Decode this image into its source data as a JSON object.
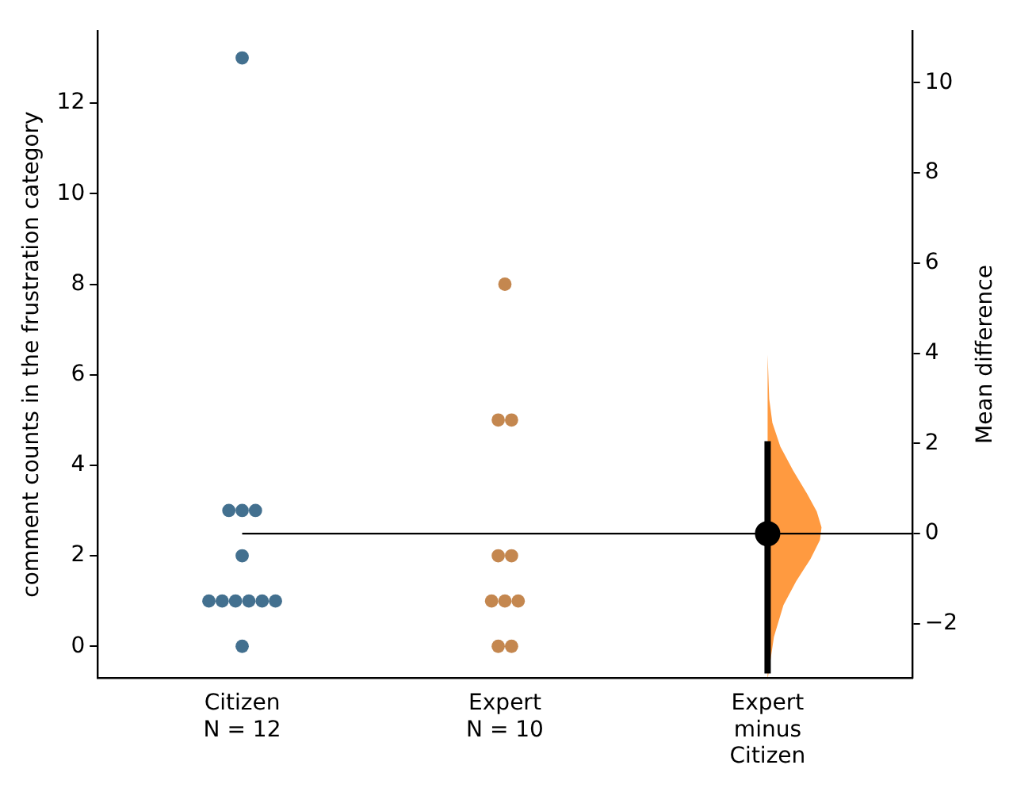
{
  "chart_data": {
    "type": "scatter",
    "categories": [
      "Citizen\nN = 12",
      "Expert\nN = 10",
      "Expert\nminus\nCitizen"
    ],
    "ylabel": "comment counts in the frustration category",
    "y2label": "Mean difference",
    "ylim": [
      -0.7,
      13.6
    ],
    "yticks": [
      0,
      2,
      4,
      6,
      8,
      10,
      12
    ],
    "y2lim": [
      -3.2,
      11.15
    ],
    "y2ticks": [
      -2,
      0,
      2,
      4,
      6,
      8,
      10
    ],
    "grid": false,
    "legend": false,
    "marker": "circle",
    "series": [
      {
        "type": "scatter",
        "color": "#43708f",
        "x": [
          "Citizen\nN = 12",
          "Citizen\nN = 12",
          "Citizen\nN = 12",
          "Citizen\nN = 12",
          "Citizen\nN = 12",
          "Citizen\nN = 12",
          "Citizen\nN = 12",
          "Citizen\nN = 12",
          "Citizen\nN = 12",
          "Citizen\nN = 12",
          "Citizen\nN = 12",
          "Citizen\nN = 12"
        ],
        "values": [
          13,
          3,
          3,
          3,
          2,
          1,
          1,
          1,
          1,
          1,
          1,
          0
        ]
      },
      {
        "type": "scatter",
        "color": "#c4874f",
        "x": [
          "Expert\nN = 10",
          "Expert\nN = 10",
          "Expert\nN = 10",
          "Expert\nN = 10",
          "Expert\nN = 10",
          "Expert\nN = 10",
          "Expert\nN = 10",
          "Expert\nN = 10",
          "Expert\nN = 10",
          "Expert\nN = 10"
        ],
        "values": [
          8,
          5,
          5,
          2,
          2,
          1,
          1,
          1,
          0,
          0
        ]
      },
      {
        "type": "scatter",
        "axis": "y2",
        "color": "#000000",
        "x": [
          "Expert\nminus\nCitizen"
        ],
        "values": [
          0
        ],
        "errors": [
          [
            -3.1,
            2.05
          ]
        ]
      }
    ],
    "ref_lines": [
      {
        "axis": "y2",
        "value": 0,
        "color": "#000000"
      }
    ]
  }
}
